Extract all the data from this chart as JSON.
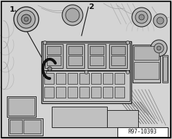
{
  "bg_color": "#d8d8d8",
  "border_color": "#000000",
  "line_color": "#222222",
  "label_1": "1",
  "label_2": "2",
  "ref_text": "R97-10393",
  "ref_box_color": "#ffffff",
  "fig_width": 2.49,
  "fig_height": 2.02,
  "dpi": 100
}
